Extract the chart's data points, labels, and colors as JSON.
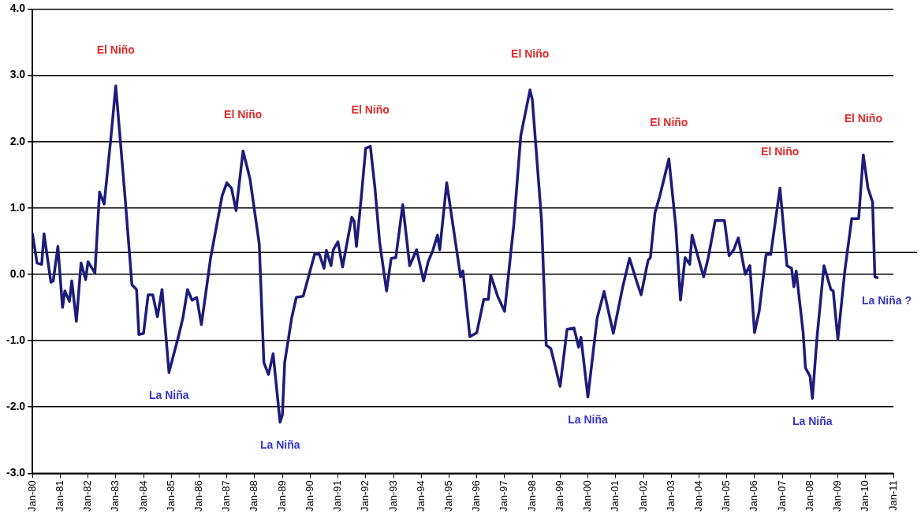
{
  "chart_data": {
    "type": "line",
    "x": [
      "1980-01",
      "1980-03",
      "1980-05",
      "1980-06",
      "1980-09",
      "1980-10",
      "1980-12",
      "1981-02",
      "1981-03",
      "1981-05",
      "1981-06",
      "1981-08",
      "1981-10",
      "1981-12",
      "1982-01",
      "1982-04",
      "1982-06",
      "1982-08",
      "1982-11",
      "1983-01",
      "1983-05",
      "1983-08",
      "1983-10",
      "1983-11",
      "1984-01",
      "1984-03",
      "1984-05",
      "1984-07",
      "1984-09",
      "1984-12",
      "1985-04",
      "1985-06",
      "1985-08",
      "1985-10",
      "1985-12",
      "1986-02",
      "1986-04",
      "1986-06",
      "1986-11",
      "1987-01",
      "1987-03",
      "1987-05",
      "1987-08",
      "1987-11",
      "1988-03",
      "1988-05",
      "1988-07",
      "1988-09",
      "1988-12",
      "1989-01",
      "1989-02",
      "1989-05",
      "1989-07",
      "1989-10",
      "1990-03",
      "1990-05",
      "1990-07",
      "1990-08",
      "1990-10",
      "1990-11",
      "1991-01",
      "1991-03",
      "1991-07",
      "1991-08",
      "1991-09",
      "1991-11",
      "1992-01",
      "1992-03",
      "1992-05",
      "1992-07",
      "1992-10",
      "1992-12",
      "1993-02",
      "1993-05",
      "1993-08",
      "1993-11",
      "1994-02",
      "1994-04",
      "1994-06",
      "1994-08",
      "1994-09",
      "1994-12",
      "1995-06",
      "1995-07",
      "1995-10",
      "1996-01",
      "1996-04",
      "1996-06",
      "1996-07",
      "1996-10",
      "1997-01",
      "1997-05",
      "1997-08",
      "1997-12",
      "1998-01",
      "1998-05",
      "1998-07",
      "1998-09",
      "1999-01",
      "1999-04",
      "1999-07",
      "1999-09",
      "1999-10",
      "2000-01",
      "2000-05",
      "2000-08",
      "2000-12",
      "2001-04",
      "2001-07",
      "2001-10",
      "2001-12",
      "2002-03",
      "2002-04",
      "2002-06",
      "2002-08",
      "2002-12",
      "2003-03",
      "2003-05",
      "2003-07",
      "2003-09",
      "2003-10",
      "2004-03",
      "2004-05",
      "2004-08",
      "2004-12",
      "2005-02",
      "2005-04",
      "2005-06",
      "2005-09",
      "2005-11",
      "2006-01",
      "2006-03",
      "2006-06",
      "2006-08",
      "2006-12",
      "2007-03",
      "2007-05",
      "2007-06",
      "2007-07",
      "2007-10",
      "2007-11",
      "2008-01",
      "2008-02",
      "2008-04",
      "2008-07",
      "2008-10",
      "2008-11",
      "2009-01",
      "2009-04",
      "2009-07",
      "2009-10",
      "2009-12",
      "2010-02",
      "2010-04",
      "2010-05",
      "2010-06"
    ],
    "series": [
      {
        "color": "#1c1c7a",
        "values": [
          0.61,
          0.17,
          0.15,
          0.61,
          -0.12,
          -0.1,
          0.42,
          -0.5,
          -0.25,
          -0.41,
          -0.1,
          -0.71,
          0.17,
          -0.08,
          0.19,
          0.02,
          1.24,
          1.06,
          2.09,
          2.84,
          1.17,
          -0.16,
          -0.23,
          -0.91,
          -0.89,
          -0.31,
          -0.31,
          -0.64,
          -0.23,
          -1.48,
          -0.95,
          -0.66,
          -0.23,
          -0.39,
          -0.35,
          -0.76,
          -0.26,
          0.25,
          1.19,
          1.38,
          1.3,
          0.96,
          1.86,
          1.44,
          0.46,
          -1.33,
          -1.51,
          -1.2,
          -2.23,
          -2.12,
          -1.33,
          -0.66,
          -0.35,
          -0.33,
          0.31,
          0.3,
          0.09,
          0.36,
          0.13,
          0.37,
          0.49,
          0.11,
          0.86,
          0.8,
          0.42,
          1.13,
          1.9,
          1.93,
          1.3,
          0.49,
          -0.25,
          0.24,
          0.25,
          1.05,
          0.13,
          0.37,
          -0.1,
          0.19,
          0.36,
          0.59,
          0.37,
          1.38,
          -0.04,
          0.05,
          -0.94,
          -0.88,
          -0.38,
          -0.38,
          -0.01,
          -0.33,
          -0.56,
          0.75,
          2.09,
          2.78,
          2.63,
          0.8,
          -1.07,
          -1.12,
          -1.69,
          -0.83,
          -0.81,
          -1.1,
          -0.95,
          -1.85,
          -0.66,
          -0.26,
          -0.89,
          -0.2,
          0.24,
          -0.1,
          -0.31,
          0.21,
          0.25,
          0.93,
          1.17,
          1.74,
          0.71,
          -0.39,
          0.25,
          0.15,
          0.59,
          -0.04,
          0.25,
          0.81,
          0.81,
          0.28,
          0.37,
          0.55,
          0.0,
          0.13,
          -0.88,
          -0.56,
          0.3,
          0.3,
          1.3,
          0.13,
          0.09,
          -0.19,
          0.05,
          -0.88,
          -1.41,
          -1.54,
          -1.87,
          -0.95,
          0.13,
          -0.23,
          -0.25,
          -0.98,
          0.05,
          0.84,
          0.84,
          1.8,
          1.3,
          1.09,
          -0.04,
          -0.05
        ]
      }
    ],
    "xlim": [
      "1980-01",
      "2011-01"
    ],
    "xticks": [
      {
        "value": "1980-01",
        "label": "Jan-80"
      },
      {
        "value": "1981-01",
        "label": "Jan-81"
      },
      {
        "value": "1982-01",
        "label": "Jan-82"
      },
      {
        "value": "1983-01",
        "label": "Jan-83"
      },
      {
        "value": "1984-01",
        "label": "Jan-84"
      },
      {
        "value": "1985-01",
        "label": "Jan-85"
      },
      {
        "value": "1986-01",
        "label": "Jan-86"
      },
      {
        "value": "1987-01",
        "label": "Jan-87"
      },
      {
        "value": "1988-01",
        "label": "Jan-88"
      },
      {
        "value": "1989-01",
        "label": "Jan-89"
      },
      {
        "value": "1990-01",
        "label": "Jan-90"
      },
      {
        "value": "1991-01",
        "label": "Jan-91"
      },
      {
        "value": "1992-01",
        "label": "Jan-92"
      },
      {
        "value": "1993-01",
        "label": "Jan-93"
      },
      {
        "value": "1994-01",
        "label": "Jan-94"
      },
      {
        "value": "1995-01",
        "label": "Jan-95"
      },
      {
        "value": "1996-01",
        "label": "Jan-96"
      },
      {
        "value": "1997-01",
        "label": "Jan-97"
      },
      {
        "value": "1998-01",
        "label": "Jan-98"
      },
      {
        "value": "1999-01",
        "label": "Jan-99"
      },
      {
        "value": "2000-01",
        "label": "Jan-00"
      },
      {
        "value": "2001-01",
        "label": "Jan-01"
      },
      {
        "value": "2002-01",
        "label": "Jan-02"
      },
      {
        "value": "2003-01",
        "label": "Jan-03"
      },
      {
        "value": "2004-01",
        "label": "Jan-04"
      },
      {
        "value": "2005-01",
        "label": "Jan-05"
      },
      {
        "value": "2006-01",
        "label": "Jan-06"
      },
      {
        "value": "2007-01",
        "label": "Jan-07"
      },
      {
        "value": "2008-01",
        "label": "Jan-08"
      },
      {
        "value": "2009-01",
        "label": "Jan-09"
      },
      {
        "value": "2010-01",
        "label": "Jan-10"
      },
      {
        "value": "2011-01",
        "label": "Jan-11"
      }
    ],
    "ylim": [
      -3,
      4
    ],
    "yticks": [
      {
        "value": -3,
        "label": "-3.0"
      },
      {
        "value": -2,
        "label": "-2.0"
      },
      {
        "value": -1,
        "label": "-1.0"
      },
      {
        "value": 0,
        "label": "0.0"
      },
      {
        "value": 1,
        "label": "1.0"
      },
      {
        "value": 2,
        "label": "2.0"
      },
      {
        "value": 3,
        "label": "3.0"
      },
      {
        "value": 4,
        "label": "4.0"
      }
    ],
    "grid": "y",
    "ref_lines": [
      {
        "axis": "y",
        "value": 0.33,
        "color": "#000000"
      }
    ],
    "annotations": [
      {
        "text": "El Niño",
        "x": "1983-01",
        "y": 2.84
      },
      {
        "text": "El Niño",
        "x": "1987-08",
        "y": 1.86
      },
      {
        "text": "El Niño",
        "x": "1992-03",
        "y": 1.93
      },
      {
        "text": "El Niño",
        "x": "1997-12",
        "y": 2.78
      },
      {
        "text": "El Niño",
        "x": "2002-12",
        "y": 1.74
      },
      {
        "text": "El Niño",
        "x": "2006-12",
        "y": 1.3
      },
      {
        "text": "El Niño",
        "x": "2009-12",
        "y": 1.8
      },
      {
        "text": "La Niña",
        "x": "1984-12",
        "y": -1.48
      },
      {
        "text": "La Niña",
        "x": "1988-12",
        "y": -2.23
      },
      {
        "text": "La Niña",
        "x": "2000-01",
        "y": -1.85
      },
      {
        "text": "La Niña",
        "x": "2008-02",
        "y": -1.87
      },
      {
        "text": "La Niña ?",
        "x": "2010-06",
        "y": -0.05
      }
    ]
  }
}
